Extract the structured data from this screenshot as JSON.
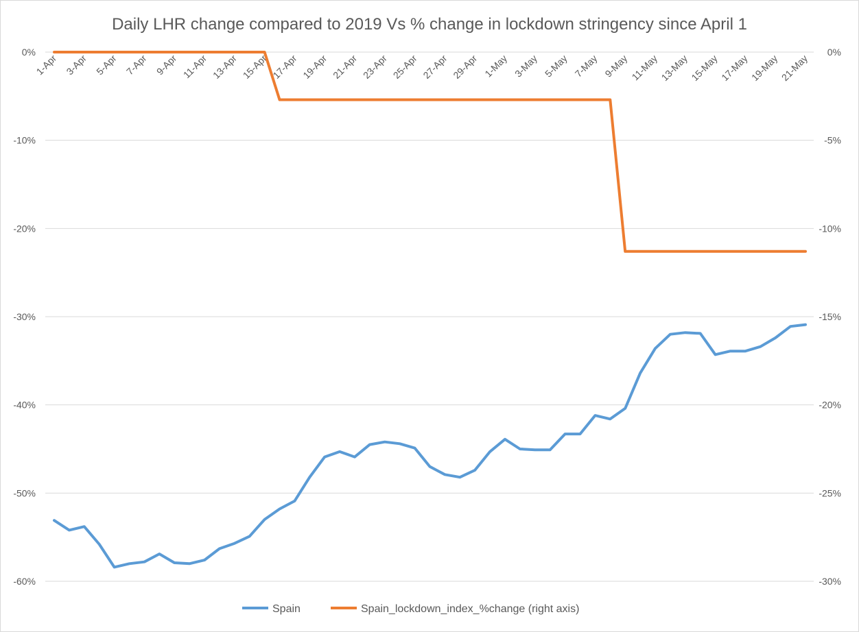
{
  "chart_data": {
    "type": "line",
    "title": "Daily LHR change compared to 2019 Vs % change in lockdown stringency since April 1",
    "x": [
      "1-Apr",
      "2-Apr",
      "3-Apr",
      "4-Apr",
      "5-Apr",
      "6-Apr",
      "7-Apr",
      "8-Apr",
      "9-Apr",
      "10-Apr",
      "11-Apr",
      "12-Apr",
      "13-Apr",
      "14-Apr",
      "15-Apr",
      "16-Apr",
      "17-Apr",
      "18-Apr",
      "19-Apr",
      "20-Apr",
      "21-Apr",
      "22-Apr",
      "23-Apr",
      "24-Apr",
      "25-Apr",
      "26-Apr",
      "27-Apr",
      "28-Apr",
      "29-Apr",
      "30-Apr",
      "1-May",
      "2-May",
      "3-May",
      "4-May",
      "5-May",
      "6-May",
      "7-May",
      "8-May",
      "9-May",
      "10-May",
      "11-May",
      "12-May",
      "13-May",
      "14-May",
      "15-May",
      "16-May",
      "17-May",
      "18-May",
      "19-May",
      "20-May",
      "21-May"
    ],
    "x_tick_labels": [
      "1-Apr",
      "3-Apr",
      "5-Apr",
      "7-Apr",
      "9-Apr",
      "11-Apr",
      "13-Apr",
      "15-Apr",
      "17-Apr",
      "19-Apr",
      "21-Apr",
      "23-Apr",
      "25-Apr",
      "27-Apr",
      "29-Apr",
      "1-May",
      "3-May",
      "5-May",
      "7-May",
      "9-May",
      "11-May",
      "13-May",
      "15-May",
      "17-May",
      "19-May",
      "21-May"
    ],
    "y_left": {
      "ylim": [
        -60,
        0
      ],
      "ticks": [
        0,
        -10,
        -20,
        -30,
        -40,
        -50,
        -60
      ],
      "tick_labels": [
        "0%",
        "-10%",
        "-20%",
        "-30%",
        "-40%",
        "-50%",
        "-60%"
      ]
    },
    "y_right": {
      "ylim": [
        -30,
        0
      ],
      "ticks": [
        0,
        -5,
        -10,
        -15,
        -20,
        -25,
        -30
      ],
      "tick_labels": [
        "0%",
        "-5%",
        "-10%",
        "-15%",
        "-20%",
        "-25%",
        "-30%"
      ]
    },
    "grid": true,
    "legend": "bottom",
    "series": [
      {
        "name": "Spain",
        "axis": "left",
        "color": "#5b9bd5",
        "values": [
          -53.1,
          -54.2,
          -53.8,
          -55.8,
          -58.4,
          -58.0,
          -57.8,
          -56.9,
          -57.9,
          -58.0,
          -57.6,
          -56.3,
          -55.7,
          -54.9,
          -53.0,
          -51.8,
          -50.9,
          -48.2,
          -45.9,
          -45.3,
          -45.9,
          -44.5,
          -44.2,
          -44.4,
          -44.9,
          -47.0,
          -47.9,
          -48.2,
          -47.4,
          -45.3,
          -43.9,
          -45.0,
          -45.1,
          -45.1,
          -43.3,
          -43.3,
          -41.2,
          -41.6,
          -40.4,
          -36.4,
          -33.6,
          -32.0,
          -31.8,
          -31.9,
          -34.3,
          -33.9,
          -33.9,
          -33.4,
          -32.4,
          -31.1,
          -30.9
        ]
      },
      {
        "name": "Spain_lockdown_index_%change (right axis)",
        "axis": "right",
        "color": "#ed7d31",
        "values": [
          0,
          0,
          0,
          0,
          0,
          0,
          0,
          0,
          0,
          0,
          0,
          0,
          0,
          0,
          0,
          -2.7,
          -2.7,
          -2.7,
          -2.7,
          -2.7,
          -2.7,
          -2.7,
          -2.7,
          -2.7,
          -2.7,
          -2.7,
          -2.7,
          -2.7,
          -2.7,
          -2.7,
          -2.7,
          -2.7,
          -2.7,
          -2.7,
          -2.7,
          -2.7,
          -2.7,
          -2.7,
          -11.3,
          -11.3,
          -11.3,
          -11.3,
          -11.3,
          -11.3,
          -11.3,
          -11.3,
          -11.3,
          -11.3,
          -11.3,
          -11.3,
          -11.3
        ]
      }
    ]
  }
}
